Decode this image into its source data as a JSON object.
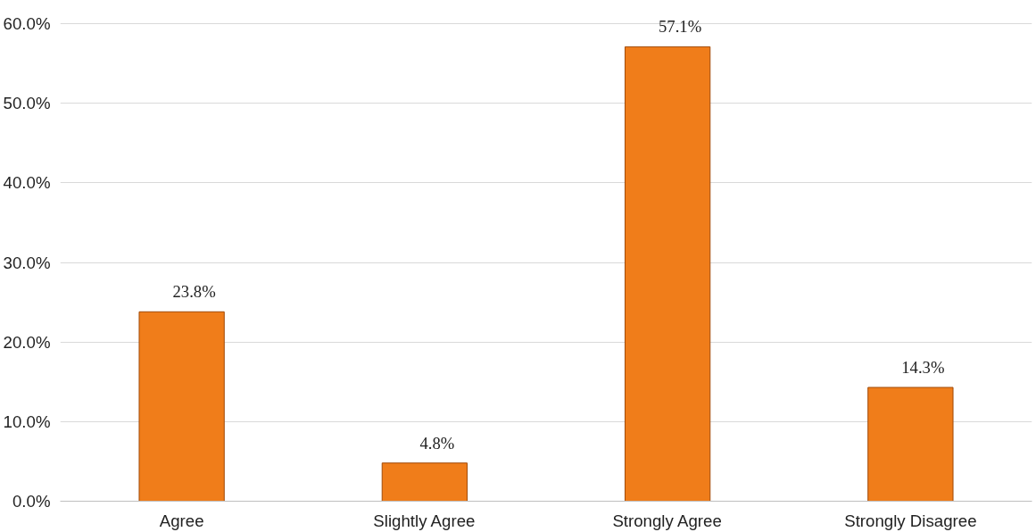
{
  "chart_data": {
    "type": "bar",
    "categories": [
      "Agree",
      "Slightly Agree",
      "Strongly Agree",
      "Strongly Disagree"
    ],
    "values": [
      23.8,
      4.8,
      57.1,
      14.3
    ],
    "value_labels": [
      "23.8%",
      "4.8%",
      "57.1%",
      "14.3%"
    ],
    "color": "#f07d1a",
    "ylim": [
      0,
      60
    ],
    "yticks": [
      {
        "value": 0,
        "label": "0.0%"
      },
      {
        "value": 10,
        "label": "10.0%"
      },
      {
        "value": 20,
        "label": "20.0%"
      },
      {
        "value": 30,
        "label": "30.0%"
      },
      {
        "value": 40,
        "label": "40.0%"
      },
      {
        "value": 50,
        "label": "50.0%"
      },
      {
        "value": 60,
        "label": "60.0%"
      }
    ],
    "grid": "y"
  }
}
